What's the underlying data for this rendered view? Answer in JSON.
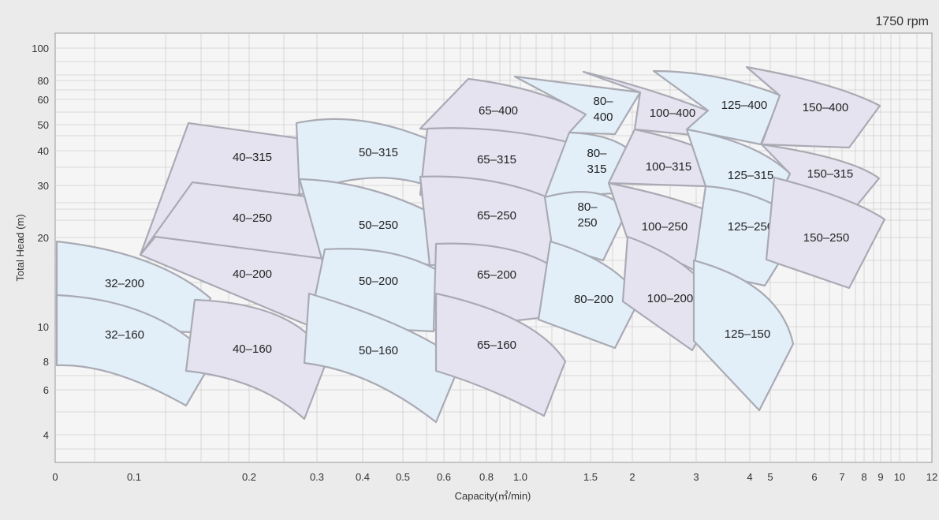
{
  "chart_data": {
    "type": "area",
    "title": "",
    "annotation": "1750 rpm",
    "xlabel": "Capacity(㎥/min)",
    "ylabel": "Total Head (m)",
    "x_ticks": [
      "0",
      "0.1",
      "0.2",
      "0.3",
      "0.4",
      "0.5",
      "0.6",
      "0.8",
      "1.0",
      "1.5",
      "2",
      "3",
      "4",
      "5",
      "6",
      "7",
      "8",
      "9",
      "10",
      "12"
    ],
    "y_ticks": [
      "100",
      "80",
      "60",
      "50",
      "40",
      "30",
      "20",
      "10",
      "8",
      "6",
      "4"
    ],
    "grid": true,
    "colors": {
      "background": "#ebebeb",
      "plot": "#f5f5f5",
      "grid": "#cfcfcf",
      "outline": "#a9aab3",
      "fill_blue": "#e2eff9",
      "fill_purple": "#e6e3f0"
    },
    "regions": [
      {
        "label": "32-200",
        "fill": "blue"
      },
      {
        "label": "32-160",
        "fill": "blue"
      },
      {
        "label": "40-315",
        "fill": "purple"
      },
      {
        "label": "40-250",
        "fill": "purple"
      },
      {
        "label": "40-200",
        "fill": "purple"
      },
      {
        "label": "40-160",
        "fill": "purple"
      },
      {
        "label": "50-315",
        "fill": "blue"
      },
      {
        "label": "50-250",
        "fill": "blue"
      },
      {
        "label": "50-200",
        "fill": "blue"
      },
      {
        "label": "50-160",
        "fill": "blue"
      },
      {
        "label": "65-400",
        "fill": "purple"
      },
      {
        "label": "65-315",
        "fill": "purple"
      },
      {
        "label": "65-250",
        "fill": "purple"
      },
      {
        "label": "65-200",
        "fill": "purple"
      },
      {
        "label": "65-160",
        "fill": "purple"
      },
      {
        "label": "80-400",
        "fill": "blue"
      },
      {
        "label": "80-315",
        "fill": "blue"
      },
      {
        "label": "80-250",
        "fill": "blue"
      },
      {
        "label": "80-200",
        "fill": "blue"
      },
      {
        "label": "100-400",
        "fill": "purple"
      },
      {
        "label": "100-315",
        "fill": "purple"
      },
      {
        "label": "100-250",
        "fill": "purple"
      },
      {
        "label": "100-200",
        "fill": "purple"
      },
      {
        "label": "125-400",
        "fill": "blue"
      },
      {
        "label": "125-315",
        "fill": "blue"
      },
      {
        "label": "125-250",
        "fill": "blue"
      },
      {
        "label": "125-150",
        "fill": "blue"
      },
      {
        "label": "150-400",
        "fill": "purple"
      },
      {
        "label": "150-315",
        "fill": "purple"
      },
      {
        "label": "150-250",
        "fill": "purple"
      }
    ]
  }
}
